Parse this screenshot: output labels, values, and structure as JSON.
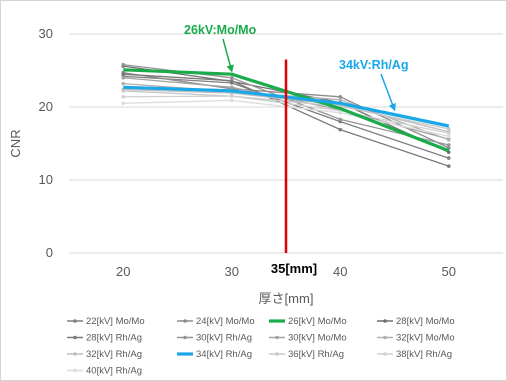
{
  "chart_data": {
    "type": "line",
    "title": "",
    "xlabel": "厚さ[mm]",
    "ylabel": "CNR",
    "x": [
      20,
      30,
      40,
      50
    ],
    "xlim": [
      15,
      55
    ],
    "ylim": [
      0,
      30
    ],
    "yticks": [
      0,
      10,
      20,
      30
    ],
    "grid": "horizontal",
    "legend_position": "bottom",
    "series": [
      {
        "name": "22[kV] Mo/Mo",
        "values": [
          24.2,
          23.3,
          18.0,
          13.0
        ],
        "color": "#7f7f7f",
        "width": 1.3,
        "highlight": false
      },
      {
        "name": "24[kV] Mo/Mo",
        "values": [
          24.7,
          22.5,
          21.4,
          14.4
        ],
        "color": "#8c8c8c",
        "width": 1.3,
        "highlight": false
      },
      {
        "name": "26[kV] Mo/Mo",
        "values": [
          25.1,
          24.5,
          19.8,
          14.0
        ],
        "color": "#1aab4b",
        "width": 3.2,
        "highlight": true
      },
      {
        "name": "28[kV] Mo/Mo",
        "values": [
          25.6,
          23.5,
          20.6,
          13.8
        ],
        "color": "#6f6f6f",
        "width": 1.3,
        "highlight": false
      },
      {
        "name": "28[kV] Rh/Ag",
        "values": [
          24.5,
          23.6,
          16.9,
          11.9
        ],
        "color": "#7a7a7a",
        "width": 1.3,
        "highlight": false
      },
      {
        "name": "30[kV] Rh/Ag",
        "values": [
          25.8,
          24.0,
          18.3,
          14.8
        ],
        "color": "#959595",
        "width": 1.3,
        "highlight": false
      },
      {
        "name": "30[kV] Mo/Mo",
        "values": [
          24.0,
          22.7,
          19.6,
          15.6
        ],
        "color": "#a3a3a3",
        "width": 1.3,
        "highlight": false
      },
      {
        "name": "32[kV] Mo/Mo",
        "values": [
          23.2,
          22.1,
          21.0,
          15.5
        ],
        "color": "#b0b0b0",
        "width": 1.3,
        "highlight": false
      },
      {
        "name": "32[kV] Rh/Ag",
        "values": [
          22.4,
          21.9,
          20.3,
          16.6
        ],
        "color": "#bdbdbd",
        "width": 1.3,
        "highlight": false
      },
      {
        "name": "34[kV] Rh/Ag",
        "values": [
          22.7,
          22.2,
          20.5,
          17.4
        ],
        "color": "#1aa7e8",
        "width": 3.2,
        "highlight": true
      },
      {
        "name": "36[kV] Rh/Ag",
        "values": [
          22.2,
          21.5,
          20.1,
          17.0
        ],
        "color": "#c8c8c8",
        "width": 1.3,
        "highlight": false
      },
      {
        "name": "38[kV] Rh/Ag",
        "values": [
          21.4,
          21.5,
          19.5,
          16.4
        ],
        "color": "#d0d0d0",
        "width": 1.3,
        "highlight": false
      },
      {
        "name": "40[kV] Rh/Ag",
        "values": [
          20.5,
          20.9,
          19.2,
          16.0
        ],
        "color": "#dcdcdc",
        "width": 1.3,
        "highlight": false
      }
    ],
    "annotations": [
      {
        "text": "26kV:Mo/Mo",
        "color": "#1aab4b",
        "target_x": 30,
        "target_y": 24.5
      },
      {
        "text": "34kV:Rh/Ag",
        "color": "#1aa7e8",
        "target_x": 45,
        "target_y": 19.2
      }
    ],
    "marker_line": {
      "x": 35,
      "y_top": 26.5,
      "y_bottom": 0,
      "color": "#e00000",
      "label": "35[mm]"
    }
  }
}
